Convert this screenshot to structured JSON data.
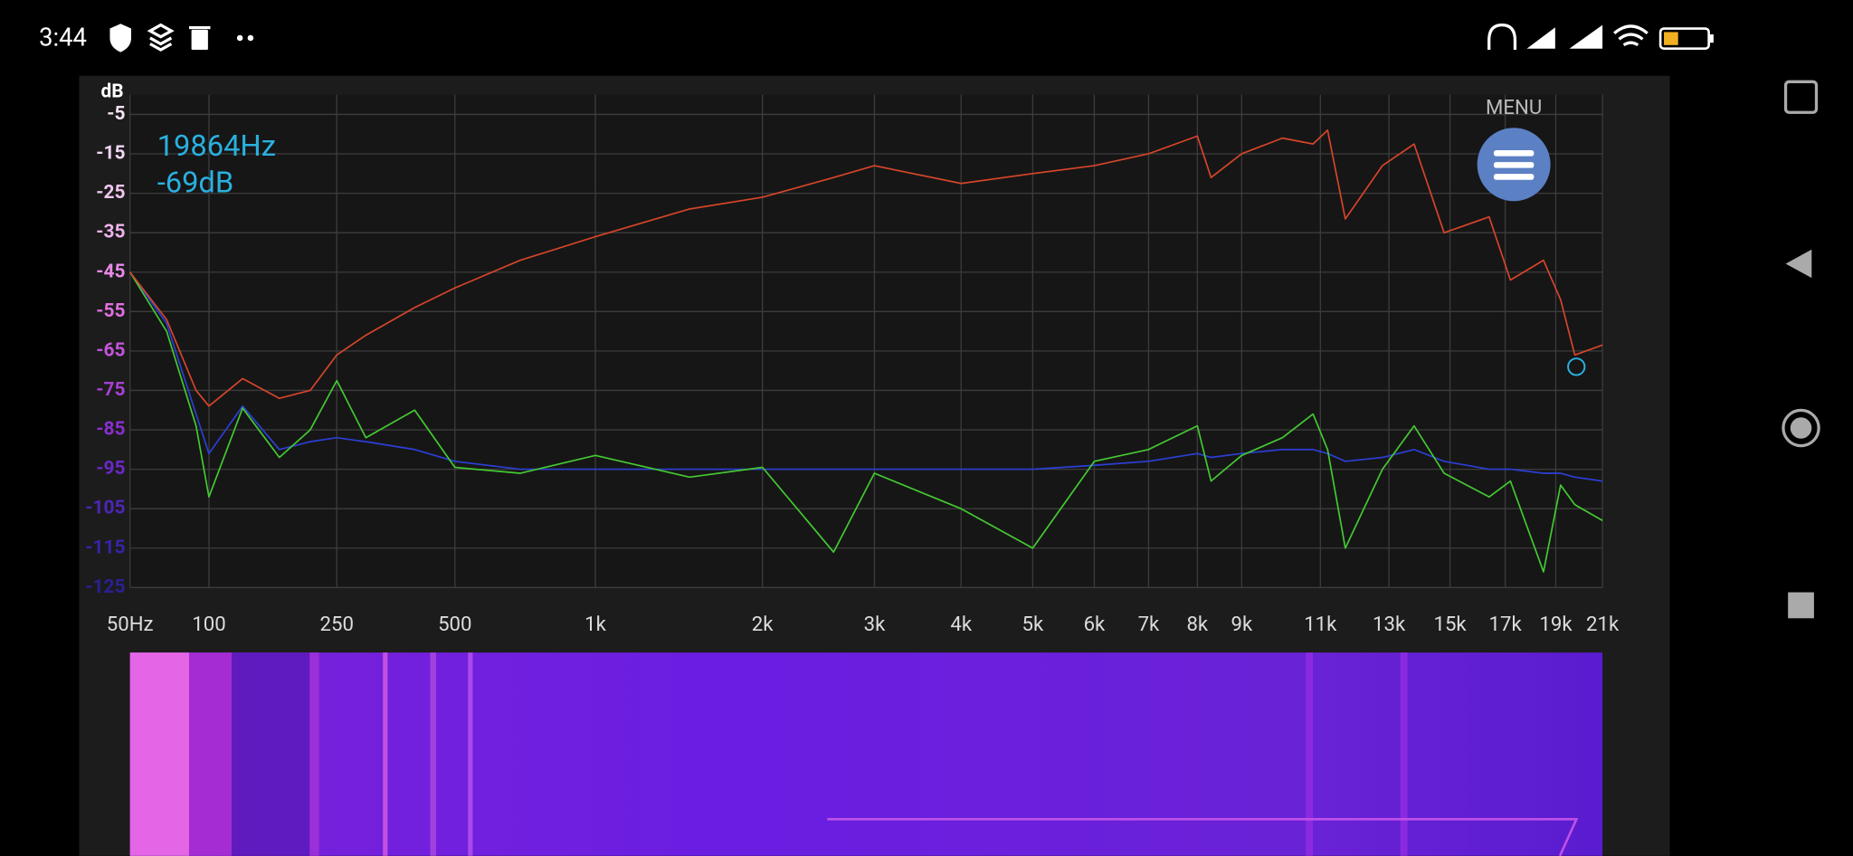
{
  "status_bar": {
    "time": "3:44",
    "battery": "41"
  },
  "menu_label": "MENU",
  "readout": {
    "frequency": "19864Hz",
    "level": "-69dB"
  },
  "chart_data": {
    "type": "line",
    "y_label": "dB",
    "x": [
      50,
      70,
      90,
      100,
      130,
      170,
      210,
      250,
      300,
      400,
      500,
      700,
      1000,
      1500,
      2000,
      2600,
      3000,
      4000,
      5000,
      6000,
      7000,
      8000,
      8300,
      9000,
      10000,
      10800,
      11200,
      11700,
      12800,
      13800,
      14800,
      16400,
      17200,
      18500,
      19200,
      19800,
      21000
    ],
    "series": [
      {
        "color": "#2c3fd6",
        "values": [
          -45,
          -58,
          -81,
          -91,
          -79,
          -90,
          -88,
          -87,
          -88,
          -90,
          -93,
          -95,
          -95,
          -95,
          -95,
          -95,
          -95,
          -95,
          -95,
          -94,
          -93,
          -91,
          -92,
          -91,
          -90,
          -90,
          -91,
          -93,
          -92,
          -90,
          -93,
          -95,
          -95,
          -96,
          -96,
          -97,
          -98
        ]
      },
      {
        "color": "#44c832",
        "values": [
          -45,
          -60,
          -84,
          -102,
          -79.5,
          -92,
          -85,
          -72.5,
          -87,
          -80,
          -94.5,
          -96,
          -91.5,
          -97,
          -94.5,
          -116,
          -96,
          -105,
          -115,
          -93,
          -90,
          -84,
          -98,
          -91.5,
          -87,
          -81,
          -90,
          -115,
          -95,
          -84,
          -96,
          -102,
          -98,
          -121,
          -99,
          -104,
          -108
        ]
      },
      {
        "color": "#d5452a",
        "values": [
          -45,
          -57,
          -75,
          -79,
          -72,
          -77,
          -75,
          -66,
          -61,
          -54,
          -49,
          -42,
          -36,
          -29,
          -26,
          -21,
          -18,
          -22.5,
          -20,
          -18,
          -15,
          -10.5,
          -21,
          -15,
          -11,
          -12.5,
          -9,
          -31.5,
          -18,
          -12.5,
          -35,
          -31,
          -47,
          -42,
          -52,
          -66,
          -63.5
        ]
      }
    ],
    "cursor": {
      "x": 19864,
      "y": -69,
      "color": "#2ab0e0"
    },
    "xlim": [
      50,
      21000
    ],
    "ylim": [
      -125,
      0
    ],
    "xticks": [
      {
        "value": 50,
        "label": "50Hz"
      },
      100,
      250,
      500,
      {
        "value": 1000,
        "label": "1k"
      },
      {
        "value": 2000,
        "label": "2k"
      },
      {
        "value": 3000,
        "label": "3k"
      },
      {
        "value": 4000,
        "label": "4k"
      },
      {
        "value": 5000,
        "label": "5k"
      },
      {
        "value": 6000,
        "label": "6k"
      },
      {
        "value": 7000,
        "label": "7k"
      },
      {
        "value": 8000,
        "label": "8k"
      },
      {
        "value": 9000,
        "label": "9k"
      },
      {
        "value": 11000,
        "label": "11k"
      },
      {
        "value": 13000,
        "label": "13k"
      },
      {
        "value": 15000,
        "label": "15k"
      },
      {
        "value": 17000,
        "label": "17k"
      },
      {
        "value": 19000,
        "label": "19k"
      },
      {
        "value": 21000,
        "label": "21k"
      }
    ],
    "yticks": [
      -5,
      -15,
      -25,
      -35,
      -45,
      -55,
      -65,
      -75,
      -85,
      -95,
      -105,
      -115,
      -125
    ],
    "grid": true
  }
}
